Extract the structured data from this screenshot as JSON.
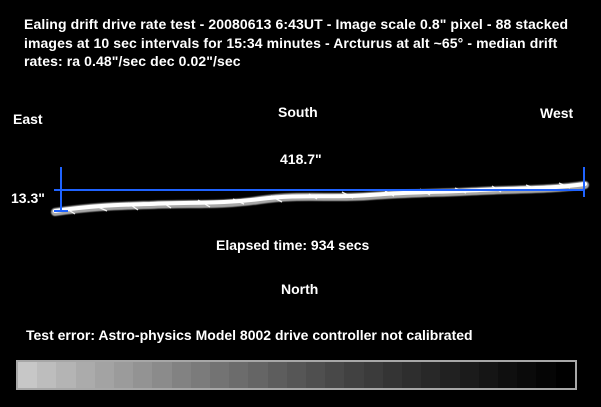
{
  "caption": {
    "text": "Ealing drift drive rate test -  20080613 6:43UT - Image scale 0.8\" pixel - 88 stacked images at 10 sec intervals for 15:34 minutes - Arcturus at alt ~65° - median drift rates:  ra 0.48\"/sec dec  0.02\"/sec"
  },
  "directions": {
    "east": "East",
    "south": "South",
    "west": "West",
    "north": "North"
  },
  "measurements": {
    "width": "418.7\"",
    "height": "13.3\"",
    "elapsed": "Elapsed time: 934 secs"
  },
  "error_note": "Test error: Astro-physics Model 8002 drive controller not calibrated",
  "colors": {
    "marker": "#1f63ff",
    "trail": "#ffffff",
    "background": "#000000",
    "frame": "#a7a7a7"
  },
  "gray_scale": {
    "steps": [
      "#c7c7c7",
      "#bdbdbd",
      "#b4b4b4",
      "#ababab",
      "#a3a3a3",
      "#9b9b9b",
      "#939393",
      "#8b8b8b",
      "#828282",
      "#7b7b7b",
      "#737373",
      "#6c6c6c",
      "#656565",
      "#5d5d5d",
      "#565656",
      "#4f4f4f",
      "#484848",
      "#414141",
      "#3b3b3b",
      "#343434",
      "#2e2e2e",
      "#282828",
      "#212121",
      "#1b1b1b",
      "#151515",
      "#0f0f0f",
      "#0a0a0a",
      "#050505",
      "#000000"
    ]
  }
}
